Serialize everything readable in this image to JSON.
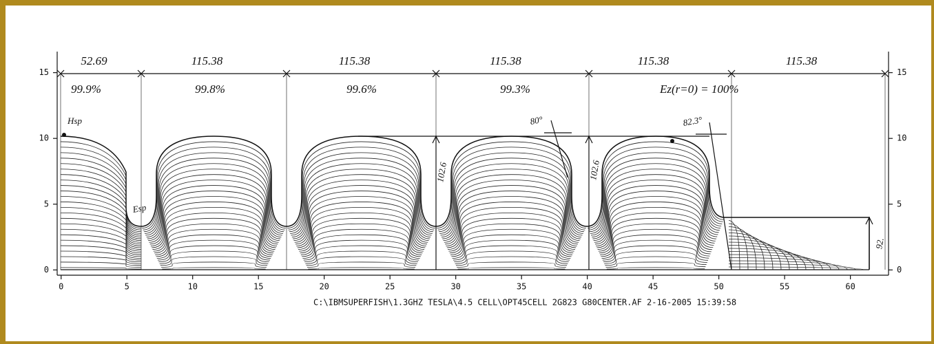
{
  "chart_data": {
    "type": "contour",
    "xlim": [
      -0.3,
      62.9
    ],
    "ylim": [
      -0.4,
      16.6
    ],
    "xticks": [
      0,
      5,
      10,
      15,
      20,
      25,
      30,
      35,
      40,
      45,
      50,
      55,
      60
    ],
    "yticks": [
      0,
      5,
      10,
      15
    ],
    "y2lim": [
      -0.4,
      16.6
    ],
    "y2ticks": [
      0,
      5,
      10,
      15
    ],
    "dimensions": [
      "52.69",
      "115.38",
      "115.38",
      "115.38",
      "115.38",
      "115.38"
    ],
    "field_flatness": [
      "99.9%",
      "99.8%",
      "99.6%",
      "99.3%",
      "Ez(r=0) = 100%"
    ],
    "annotations": [
      "Hsp",
      "Esp",
      "80°",
      "82.3°",
      "102.6",
      "102.6",
      "92."
    ],
    "footer": "C:\\IBMSUPERFISH\\1.3GHZ TESLA\\4.5 CELL\\OPT45CELL 2G823 G80CENTER.AF  2-16-2005  15:39:58"
  }
}
